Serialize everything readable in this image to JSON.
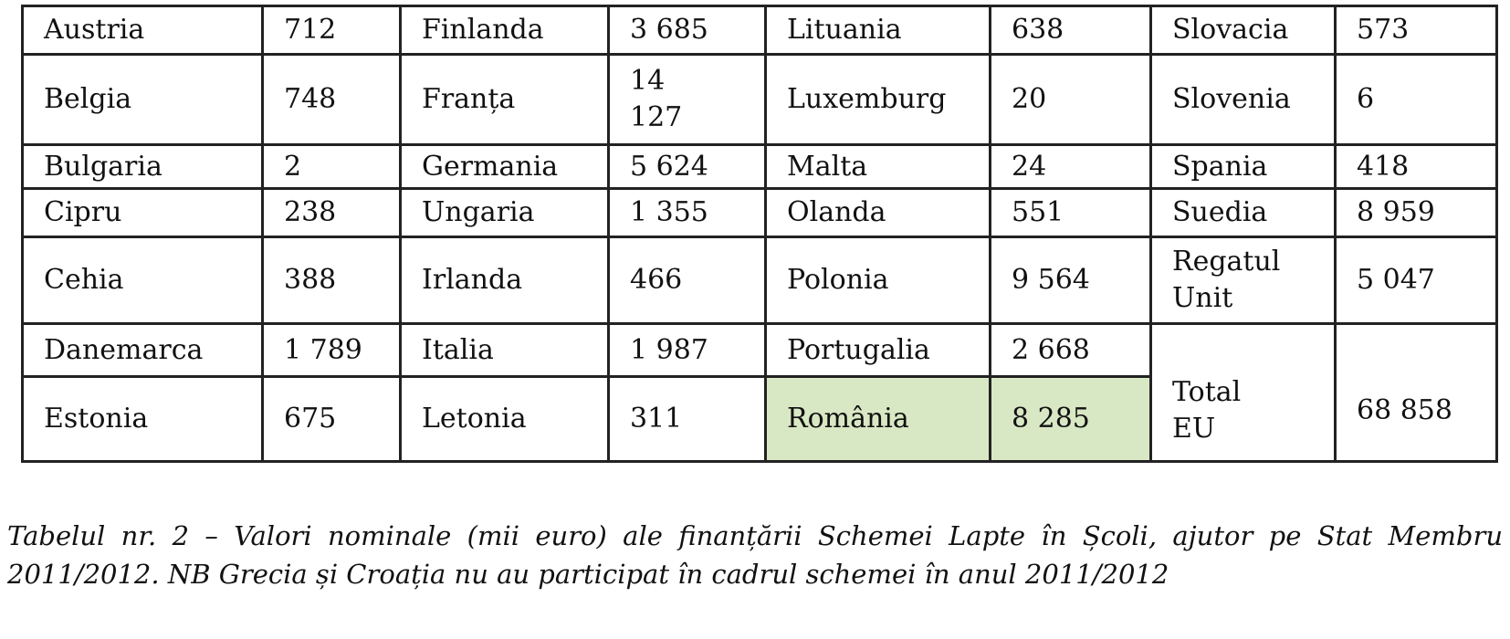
{
  "table": {
    "rows": [
      [
        "Austria",
        "712",
        "Finlanda",
        "3 685",
        "Lituania",
        "638",
        "Slovacia",
        "573"
      ],
      [
        "Belgia",
        "748",
        "Franța",
        "14 127",
        "Luxemburg",
        "20",
        "Slovenia",
        "6"
      ],
      [
        "Bulgaria",
        "2",
        "Germania",
        "5 624",
        "Malta",
        "24",
        "Spania",
        "418"
      ],
      [
        "Cipru",
        "238",
        "Ungaria",
        "1 355",
        "Olanda",
        "551",
        "Suedia",
        "8 959"
      ],
      [
        "Cehia",
        "388",
        "Irlanda",
        "466",
        "Polonia",
        "9 564",
        "Regatul Unit",
        "5 047"
      ],
      [
        "Danemarca",
        "1 789",
        "Italia",
        "1 987",
        "Portugalia",
        "2 668"
      ],
      [
        "Estonia",
        "675",
        "Letonia",
        "311",
        "România",
        "8 285"
      ]
    ],
    "total": {
      "label": "Total EU",
      "value": "68 858"
    }
  },
  "caption": "Tabelul nr. 2 – Valori nominale (mii euro) ale finanțării Schemei Lapte în Școli, ajutor pe Stat Membru 2011/2012. NB Grecia și Croația nu au participat în cadrul schemei în anul 2011/2012"
}
